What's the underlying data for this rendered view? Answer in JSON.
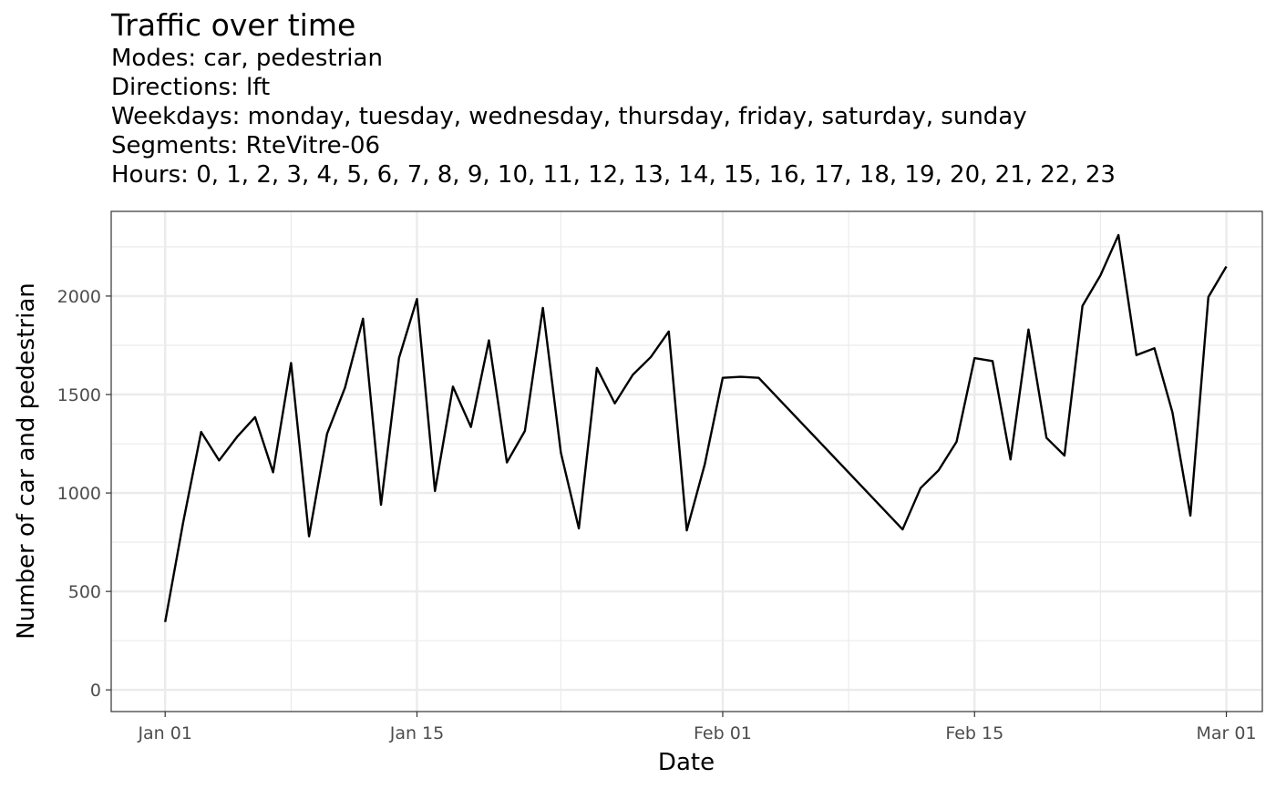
{
  "chart_data": {
    "type": "line",
    "title": "Traffic over time",
    "subtitle": [
      "Modes: car, pedestrian",
      "Directions: lft",
      "Weekdays: monday, tuesday, wednesday, thursday, friday, saturday, sunday",
      "Segments: RteVitre-06",
      "Hours: 0, 1, 2, 3, 4, 5, 6, 7, 8, 9, 10, 11, 12, 13, 14, 15, 16, 17, 18, 19, 20, 21, 22, 23"
    ],
    "xlabel": "Date",
    "ylabel": "Number of car and pedestrian",
    "xlim": [
      "2022-12-29",
      "2023-03-03"
    ],
    "ylim": [
      -110,
      2430
    ],
    "x_ticks": [
      {
        "date": "2023-01-01",
        "label": "Jan 01"
      },
      {
        "date": "2023-01-15",
        "label": "Jan 15"
      },
      {
        "date": "2023-02-01",
        "label": "Feb 01"
      },
      {
        "date": "2023-02-15",
        "label": "Feb 15"
      },
      {
        "date": "2023-03-01",
        "label": "Mar 01"
      }
    ],
    "x_minor_ticks": [
      "2023-01-08",
      "2023-01-23",
      "2023-02-08",
      "2023-02-22"
    ],
    "y_ticks": [
      0,
      500,
      1000,
      1500,
      2000
    ],
    "y_minor_ticks": [
      250,
      750,
      1250,
      1750,
      2250
    ],
    "grid": true,
    "legend": "none",
    "line_color": "#000000",
    "series": [
      {
        "points": [
          {
            "date": "2023-01-01",
            "value": 345
          },
          {
            "date": "2023-01-02",
            "value": 850
          },
          {
            "date": "2023-01-03",
            "value": 1310
          },
          {
            "date": "2023-01-04",
            "value": 1165
          },
          {
            "date": "2023-01-05",
            "value": 1285
          },
          {
            "date": "2023-01-06",
            "value": 1385
          },
          {
            "date": "2023-01-07",
            "value": 1105
          },
          {
            "date": "2023-01-08",
            "value": 1660
          },
          {
            "date": "2023-01-09",
            "value": 780
          },
          {
            "date": "2023-01-10",
            "value": 1300
          },
          {
            "date": "2023-01-11",
            "value": 1535
          },
          {
            "date": "2023-01-12",
            "value": 1885
          },
          {
            "date": "2023-01-13",
            "value": 940
          },
          {
            "date": "2023-01-14",
            "value": 1685
          },
          {
            "date": "2023-01-15",
            "value": 1985
          },
          {
            "date": "2023-01-16",
            "value": 1010
          },
          {
            "date": "2023-01-17",
            "value": 1540
          },
          {
            "date": "2023-01-18",
            "value": 1335
          },
          {
            "date": "2023-01-19",
            "value": 1775
          },
          {
            "date": "2023-01-20",
            "value": 1155
          },
          {
            "date": "2023-01-21",
            "value": 1315
          },
          {
            "date": "2023-01-22",
            "value": 1940
          },
          {
            "date": "2023-01-23",
            "value": 1205
          },
          {
            "date": "2023-01-24",
            "value": 820
          },
          {
            "date": "2023-01-25",
            "value": 1635
          },
          {
            "date": "2023-01-26",
            "value": 1455
          },
          {
            "date": "2023-01-27",
            "value": 1600
          },
          {
            "date": "2023-01-28",
            "value": 1690
          },
          {
            "date": "2023-01-29",
            "value": 1820
          },
          {
            "date": "2023-01-30",
            "value": 810
          },
          {
            "date": "2023-01-31",
            "value": 1145
          },
          {
            "date": "2023-02-01",
            "value": 1585
          },
          {
            "date": "2023-02-02",
            "value": 1590
          },
          {
            "date": "2023-02-03",
            "value": 1585
          },
          {
            "date": "2023-02-11",
            "value": 815
          },
          {
            "date": "2023-02-12",
            "value": 1025
          },
          {
            "date": "2023-02-13",
            "value": 1115
          },
          {
            "date": "2023-02-14",
            "value": 1260
          },
          {
            "date": "2023-02-15",
            "value": 1685
          },
          {
            "date": "2023-02-16",
            "value": 1670
          },
          {
            "date": "2023-02-17",
            "value": 1170
          },
          {
            "date": "2023-02-18",
            "value": 1830
          },
          {
            "date": "2023-02-19",
            "value": 1280
          },
          {
            "date": "2023-02-20",
            "value": 1190
          },
          {
            "date": "2023-02-21",
            "value": 1950
          },
          {
            "date": "2023-02-22",
            "value": 2105
          },
          {
            "date": "2023-02-23",
            "value": 2310
          },
          {
            "date": "2023-02-24",
            "value": 1700
          },
          {
            "date": "2023-02-25",
            "value": 1735
          },
          {
            "date": "2023-02-26",
            "value": 1410
          },
          {
            "date": "2023-02-27",
            "value": 885
          },
          {
            "date": "2023-02-28",
            "value": 1995
          },
          {
            "date": "2023-03-01",
            "value": 2150
          }
        ]
      }
    ]
  }
}
